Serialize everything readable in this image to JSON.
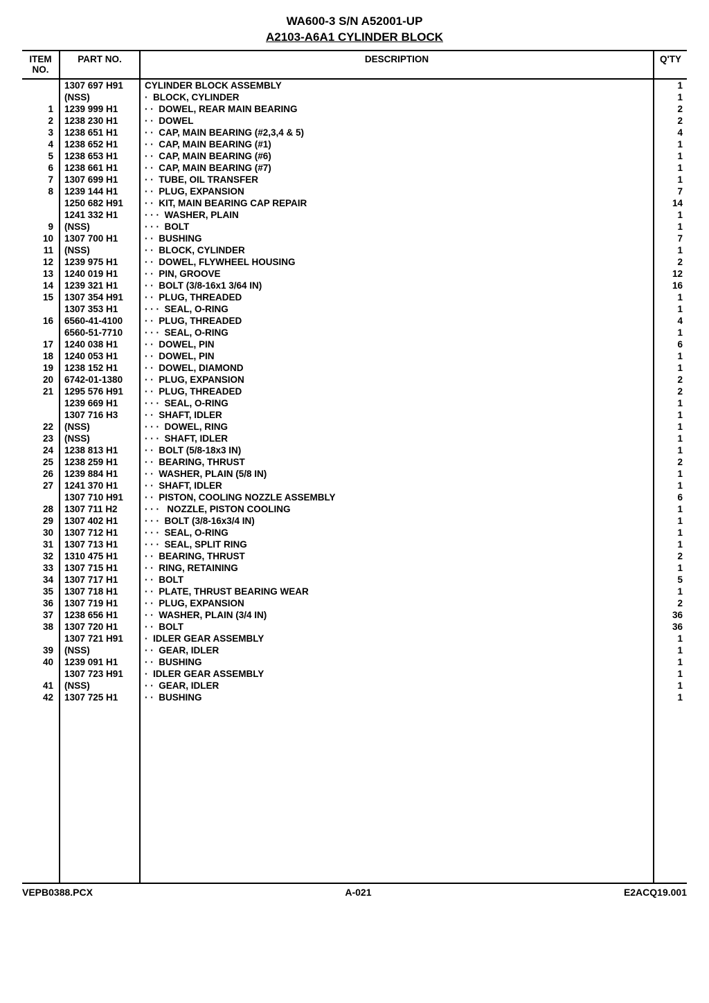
{
  "title": {
    "line1": "WA600-3 S/N A52001-UP",
    "line2": "A2103-A6A1 CYLINDER BLOCK"
  },
  "columns": {
    "item": "ITEM\nNO.",
    "part": "PART NO.",
    "desc": "DESCRIPTION",
    "qty": "Q'TY"
  },
  "footer": {
    "left": "VEPB0388.PCX",
    "center": "A-021",
    "right": "E2ACQ19.001"
  },
  "rows": [
    {
      "item": "",
      "part": "1307 697 H91",
      "indent": 0,
      "desc": "CYLINDER BLOCK ASSEMBLY",
      "qty": "1"
    },
    {
      "item": "",
      "part": "(NSS)",
      "indent": 1,
      "desc": "BLOCK, CYLINDER",
      "qty": "1"
    },
    {
      "item": "1",
      "part": "1239 999 H1",
      "indent": 2,
      "desc": "DOWEL, REAR MAIN BEARING",
      "qty": "2"
    },
    {
      "item": "2",
      "part": "1238 230 H1",
      "indent": 2,
      "desc": "DOWEL",
      "qty": "2"
    },
    {
      "item": "3",
      "part": "1238 651 H1",
      "indent": 2,
      "desc": "CAP, MAIN BEARING (#2,3,4 & 5)",
      "qty": "4"
    },
    {
      "item": "4",
      "part": "1238 652 H1",
      "indent": 2,
      "desc": "CAP, MAIN BEARING (#1)",
      "qty": "1"
    },
    {
      "item": "5",
      "part": "1238 653 H1",
      "indent": 2,
      "desc": "CAP, MAIN BEARING (#6)",
      "qty": "1"
    },
    {
      "item": "6",
      "part": "1238 661 H1",
      "indent": 2,
      "desc": "CAP, MAIN BEARING (#7)",
      "qty": "1"
    },
    {
      "item": "7",
      "part": "1307 699 H1",
      "indent": 2,
      "desc": "TUBE, OIL TRANSFER",
      "qty": "1"
    },
    {
      "item": "8",
      "part": "1239 144 H1",
      "indent": 2,
      "desc": "PLUG, EXPANSION",
      "qty": "7"
    },
    {
      "item": "",
      "part": "1250 682 H91",
      "indent": 2,
      "desc": "KIT, MAIN BEARING CAP REPAIR",
      "qty": "14"
    },
    {
      "item": "",
      "part": "1241 332 H1",
      "indent": 3,
      "desc": "WASHER, PLAIN",
      "qty": "1"
    },
    {
      "item": "9",
      "part": "(NSS)",
      "indent": 3,
      "desc": "BOLT",
      "qty": "1"
    },
    {
      "item": "10",
      "part": "1307 700 H1",
      "indent": 2,
      "desc": "BUSHING",
      "qty": "7"
    },
    {
      "item": "11",
      "part": "(NSS)",
      "indent": 2,
      "desc": "BLOCK, CYLINDER",
      "qty": "1"
    },
    {
      "item": "12",
      "part": "1239 975 H1",
      "indent": 2,
      "desc": "DOWEL, FLYWHEEL HOUSING",
      "qty": "2"
    },
    {
      "item": "13",
      "part": "1240 019 H1",
      "indent": 2,
      "desc": "PIN, GROOVE",
      "qty": "12"
    },
    {
      "item": "14",
      "part": "1239 321 H1",
      "indent": 2,
      "desc": "BOLT (3/8-16x1 3/64 IN)",
      "qty": "16"
    },
    {
      "item": "15",
      "part": "1307 354 H91",
      "indent": 2,
      "desc": "PLUG, THREADED",
      "qty": "1"
    },
    {
      "item": "",
      "part": "1307 353 H1",
      "indent": 3,
      "desc": "SEAL, O-RING",
      "qty": "1"
    },
    {
      "item": "16",
      "part": "6560-41-4100",
      "indent": 2,
      "desc": "PLUG, THREADED",
      "qty": "4"
    },
    {
      "item": "",
      "part": "6560-51-7710",
      "indent": 3,
      "desc": "SEAL, O-RING",
      "qty": "1"
    },
    {
      "item": "17",
      "part": "1240 038 H1",
      "indent": 2,
      "desc": "DOWEL, PIN",
      "qty": "6"
    },
    {
      "item": "18",
      "part": "1240 053 H1",
      "indent": 2,
      "desc": "DOWEL, PIN",
      "qty": "1"
    },
    {
      "item": "19",
      "part": "1238 152 H1",
      "indent": 2,
      "desc": "DOWEL, DIAMOND",
      "qty": "1"
    },
    {
      "item": "20",
      "part": "6742-01-1380",
      "indent": 2,
      "desc": "PLUG, EXPANSION",
      "qty": "2"
    },
    {
      "item": "21",
      "part": "1295 576 H91",
      "indent": 2,
      "desc": "PLUG, THREADED",
      "qty": "2"
    },
    {
      "item": "",
      "part": "1239 669 H1",
      "indent": 3,
      "desc": "SEAL, O-RING",
      "qty": "1"
    },
    {
      "item": "",
      "part": "1307 716 H3",
      "indent": 2,
      "desc": "SHAFT, IDLER",
      "qty": "1"
    },
    {
      "item": "22",
      "part": "(NSS)",
      "indent": 3,
      "desc": "DOWEL, RING",
      "qty": "1"
    },
    {
      "item": "23",
      "part": "(NSS)",
      "indent": 3,
      "desc": "SHAFT, IDLER",
      "qty": "1"
    },
    {
      "item": "24",
      "part": "1238 813 H1",
      "indent": 2,
      "desc": "BOLT (5/8-18x3 IN)",
      "qty": "1"
    },
    {
      "item": "25",
      "part": "1238 259 H1",
      "indent": 2,
      "desc": "BEARING, THRUST",
      "qty": "2"
    },
    {
      "item": "26",
      "part": "1239 884 H1",
      "indent": 2,
      "desc": "WASHER, PLAIN (5/8 IN)",
      "qty": "1"
    },
    {
      "item": "27",
      "part": "1241 370 H1",
      "indent": 2,
      "desc": "SHAFT, IDLER",
      "qty": "1"
    },
    {
      "item": "",
      "part": "1307 710 H91",
      "indent": 2,
      "desc": "PISTON, COOLING NOZZLE ASSEMBLY",
      "qty": "6"
    },
    {
      "item": "28",
      "part": "1307 711 H2",
      "indent": 3,
      "desc": " NOZZLE, PISTON COOLING",
      "qty": "1"
    },
    {
      "item": "29",
      "part": "1307 402 H1",
      "indent": 3,
      "desc": "BOLT (3/8-16x3/4 IN)",
      "qty": "1"
    },
    {
      "item": "30",
      "part": "1307 712 H1",
      "indent": 3,
      "desc": "SEAL, O-RING",
      "qty": "1"
    },
    {
      "item": "31",
      "part": "1307 713 H1",
      "indent": 3,
      "desc": "SEAL, SPLIT RING",
      "qty": "1"
    },
    {
      "item": "32",
      "part": "1310 475 H1",
      "indent": 2,
      "desc": "BEARING, THRUST",
      "qty": "2"
    },
    {
      "item": "33",
      "part": "1307 715 H1",
      "indent": 2,
      "desc": "RING, RETAINING",
      "qty": "1"
    },
    {
      "item": "34",
      "part": "1307 717 H1",
      "indent": 2,
      "desc": "BOLT",
      "qty": "5"
    },
    {
      "item": "35",
      "part": "1307 718 H1",
      "indent": 2,
      "desc": "PLATE, THRUST BEARING WEAR",
      "qty": "1"
    },
    {
      "item": "36",
      "part": "1307 719 H1",
      "indent": 2,
      "desc": "PLUG, EXPANSION",
      "qty": "2"
    },
    {
      "item": "37",
      "part": "1238 656 H1",
      "indent": 2,
      "desc": "WASHER, PLAIN (3/4 IN)",
      "qty": "36"
    },
    {
      "item": "38",
      "part": "1307 720 H1",
      "indent": 2,
      "desc": "BOLT",
      "qty": "36"
    },
    {
      "item": "",
      "part": "1307 721 H91",
      "indent": 1,
      "desc": "IDLER GEAR ASSEMBLY",
      "qty": "1"
    },
    {
      "item": "39",
      "part": "(NSS)",
      "indent": 2,
      "desc": "GEAR, IDLER",
      "qty": "1"
    },
    {
      "item": "40",
      "part": "1239 091 H1",
      "indent": 2,
      "desc": "BUSHING",
      "qty": "1"
    },
    {
      "item": "",
      "part": "1307 723 H91",
      "indent": 1,
      "desc": "IDLER GEAR ASSEMBLY",
      "qty": "1"
    },
    {
      "item": "41",
      "part": "(NSS)",
      "indent": 2,
      "desc": "GEAR, IDLER",
      "qty": "1"
    },
    {
      "item": "42",
      "part": "1307 725 H1",
      "indent": 2,
      "desc": "BUSHING",
      "qty": "1"
    }
  ]
}
